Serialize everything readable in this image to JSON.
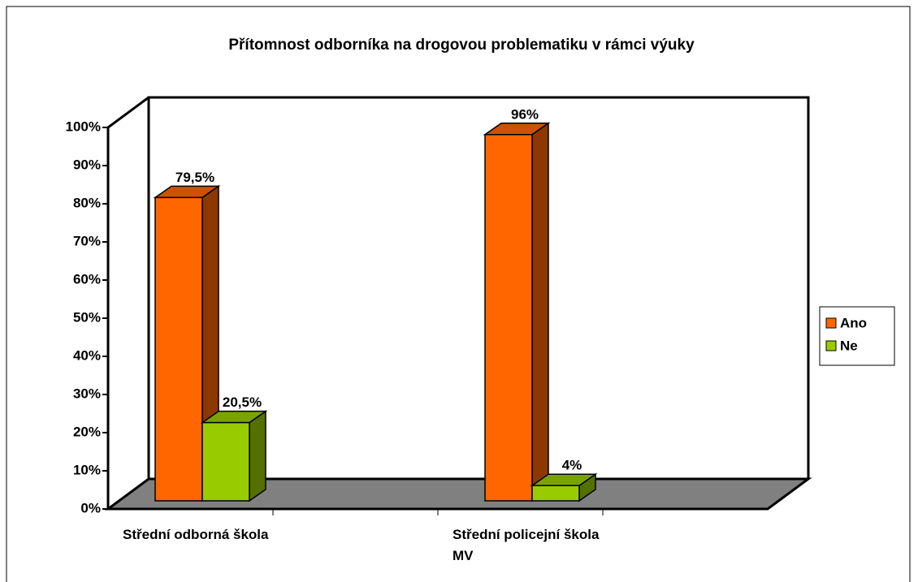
{
  "chart_data": {
    "type": "bar",
    "title": "Přítomnost odborníka na drogovou problematiku v rámci výuky",
    "categories": [
      "Střední odborná škola",
      "Střední policejní škola MV"
    ],
    "series": [
      {
        "name": "Ano",
        "color": "#ff6600",
        "values": [
          79.5,
          96
        ],
        "value_labels": [
          "79,5%",
          "96%"
        ]
      },
      {
        "name": "Ne",
        "color": "#99cc00",
        "values": [
          20.5,
          4
        ],
        "value_labels": [
          "20,5%",
          "4%"
        ]
      }
    ],
    "ylim": [
      0,
      100
    ],
    "yticks": [
      {
        "value": 0,
        "label": "0%"
      },
      {
        "value": 10,
        "label": "10%"
      },
      {
        "value": 20,
        "label": "20%"
      },
      {
        "value": 30,
        "label": "30%"
      },
      {
        "value": 40,
        "label": "40%"
      },
      {
        "value": 50,
        "label": "50%"
      },
      {
        "value": 60,
        "label": "60%"
      },
      {
        "value": 70,
        "label": "70%"
      },
      {
        "value": 80,
        "label": "80%"
      },
      {
        "value": 90,
        "label": "90%"
      },
      {
        "value": 100,
        "label": "100%"
      }
    ],
    "legend": "right"
  }
}
